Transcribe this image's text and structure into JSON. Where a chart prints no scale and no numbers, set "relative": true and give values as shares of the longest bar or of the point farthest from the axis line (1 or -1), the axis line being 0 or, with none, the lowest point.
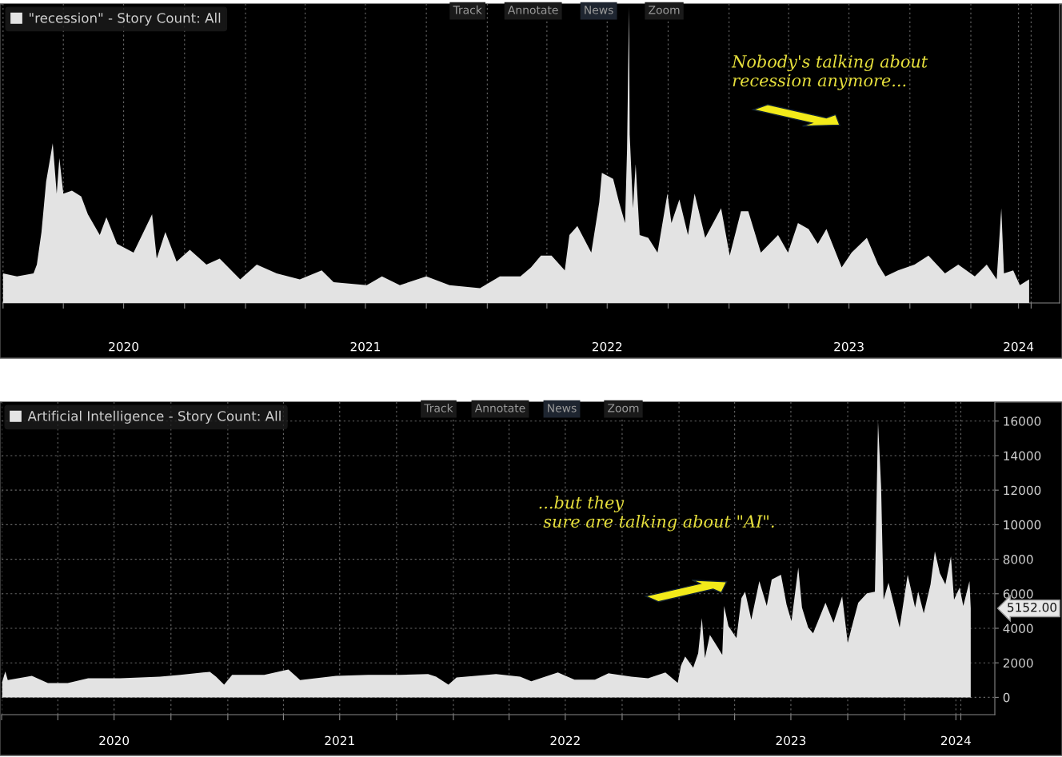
{
  "chart_data": [
    {
      "type": "area",
      "relative": true,
      "legend": "top left",
      "grid": "x",
      "tick_labels": "x",
      "annotations": [
        "Track",
        "Annotate",
        "News",
        "Zoom",
        "Nobody's talking about\nrecession anymore..."
      ],
      "xlim": [
        "2019-12-31",
        "2024-05-14"
      ],
      "xticks": [
        {
          "value": "2020-01-01",
          "label": null
        },
        {
          "value": "2020-04-01",
          "label": null
        },
        {
          "value": "2020-07-01",
          "label": "2020"
        },
        {
          "value": "2020-10-01",
          "label": null
        },
        {
          "value": "2021-01-01",
          "label": null
        },
        {
          "value": "2021-04-01",
          "label": null
        },
        {
          "value": "2021-07-01",
          "label": "2021"
        },
        {
          "value": "2021-10-01",
          "label": null
        },
        {
          "value": "2022-01-01",
          "label": null
        },
        {
          "value": "2022-04-01",
          "label": null
        },
        {
          "value": "2022-07-01",
          "label": "2022"
        },
        {
          "value": "2022-10-01",
          "label": null
        },
        {
          "value": "2023-01-01",
          "label": null
        },
        {
          "value": "2023-04-01",
          "label": null
        },
        {
          "value": "2023-07-01",
          "label": "2023"
        },
        {
          "value": "2023-10-01",
          "label": null
        },
        {
          "value": "2024-01-01",
          "label": null
        },
        {
          "value": "2024-03-13",
          "label": "2024"
        },
        {
          "value": "2024-04-01",
          "label": null
        }
      ],
      "series": [
        {
          "name": "\"recession\" - Story Count: All",
          "color": "#e3e3e3",
          "x": [
            "2020-01-01",
            "2020-01-22",
            "2020-02-16",
            "2020-02-21",
            "2020-02-28",
            "2020-03-06",
            "2020-03-16",
            "2020-03-22",
            "2020-03-26",
            "2020-04-01",
            "2020-04-14",
            "2020-04-28",
            "2020-05-08",
            "2020-05-26",
            "2020-06-05",
            "2020-06-21",
            "2020-07-16",
            "2020-08-13",
            "2020-08-20",
            "2020-09-02",
            "2020-09-19",
            "2020-10-09",
            "2020-11-03",
            "2020-11-23",
            "2020-12-24",
            "2021-01-18",
            "2021-02-17",
            "2021-03-24",
            "2021-04-26",
            "2021-05-14",
            "2021-07-03",
            "2021-07-26",
            "2021-08-22",
            "2021-10-01",
            "2021-11-05",
            "2021-12-21",
            "2022-01-20",
            "2022-02-20",
            "2022-03-08",
            "2022-03-23",
            "2022-04-08",
            "2022-04-28",
            "2022-05-05",
            "2022-05-17",
            "2022-06-07",
            "2022-06-19",
            "2022-06-23",
            "2022-07-10",
            "2022-07-19",
            "2022-07-28",
            "2022-07-31",
            "2022-08-03",
            "2022-08-04",
            "2022-08-09",
            "2022-08-13",
            "2022-08-19",
            "2022-09-01",
            "2022-09-15",
            "2022-09-30",
            "2022-10-06",
            "2022-10-18",
            "2022-10-31",
            "2022-11-10",
            "2022-11-26",
            "2022-12-20",
            "2023-01-02",
            "2023-01-19",
            "2023-01-30",
            "2023-02-18",
            "2023-03-16",
            "2023-03-31",
            "2023-04-15",
            "2023-05-01",
            "2023-05-15",
            "2023-05-28",
            "2023-06-20",
            "2023-07-05",
            "2023-07-28",
            "2023-08-14",
            "2023-08-25",
            "2023-09-13",
            "2023-10-08",
            "2023-10-29",
            "2023-11-23",
            "2023-12-13",
            "2024-01-07",
            "2024-01-25",
            "2024-02-09",
            "2024-02-16",
            "2024-02-20",
            "2024-03-05",
            "2024-03-15",
            "2024-03-29"
          ],
          "values": [
            0.1,
            0.09,
            0.1,
            0.13,
            0.24,
            0.41,
            0.54,
            0.37,
            0.49,
            0.37,
            0.38,
            0.36,
            0.3,
            0.23,
            0.29,
            0.2,
            0.17,
            0.3,
            0.15,
            0.24,
            0.14,
            0.18,
            0.13,
            0.15,
            0.08,
            0.13,
            0.1,
            0.08,
            0.11,
            0.07,
            0.06,
            0.09,
            0.06,
            0.09,
            0.06,
            0.05,
            0.09,
            0.09,
            0.12,
            0.16,
            0.16,
            0.11,
            0.23,
            0.26,
            0.17,
            0.34,
            0.44,
            0.42,
            0.34,
            0.27,
            0.52,
            1,
            0.57,
            0.32,
            0.47,
            0.23,
            0.22,
            0.17,
            0.37,
            0.27,
            0.35,
            0.23,
            0.37,
            0.22,
            0.32,
            0.16,
            0.31,
            0.31,
            0.17,
            0.23,
            0.17,
            0.27,
            0.25,
            0.2,
            0.25,
            0.12,
            0.17,
            0.22,
            0.13,
            0.09,
            0.11,
            0.13,
            0.16,
            0.1,
            0.13,
            0.09,
            0.13,
            0.08,
            0.32,
            0.1,
            0.11,
            0.06,
            0.08
          ]
        }
      ]
    },
    {
      "type": "area",
      "legend": "top left",
      "grid": true,
      "annotations": [
        "Track",
        "Annotate",
        "News",
        "Zoom",
        "...but they\n sure are talking about \"AI\".",
        "5152.00"
      ],
      "xlim": [
        "2020-01-01",
        "2024-05-26"
      ],
      "xticks": [
        {
          "value": "2020-01-01",
          "label": null
        },
        {
          "value": "2020-04-01",
          "label": null
        },
        {
          "value": "2020-07-01",
          "label": "2020"
        },
        {
          "value": "2020-10-01",
          "label": null
        },
        {
          "value": "2021-01-01",
          "label": null
        },
        {
          "value": "2021-04-01",
          "label": null
        },
        {
          "value": "2021-07-01",
          "label": "2021"
        },
        {
          "value": "2021-10-01",
          "label": null
        },
        {
          "value": "2022-01-01",
          "label": null
        },
        {
          "value": "2022-04-01",
          "label": null
        },
        {
          "value": "2022-07-01",
          "label": "2022"
        },
        {
          "value": "2022-10-01",
          "label": null
        },
        {
          "value": "2023-01-01",
          "label": null
        },
        {
          "value": "2023-04-01",
          "label": null
        },
        {
          "value": "2023-07-01",
          "label": "2023"
        },
        {
          "value": "2023-10-01",
          "label": null
        },
        {
          "value": "2024-01-01",
          "label": null
        },
        {
          "value": "2024-03-24",
          "label": "2024"
        },
        {
          "value": "2024-04-01",
          "label": null
        }
      ],
      "ylim": [
        -1000,
        17100
      ],
      "yticks": [
        0,
        2000,
        4000,
        6000,
        8000,
        10000,
        12000,
        14000,
        16000
      ],
      "series": [
        {
          "name": "Artificial Intelligence - Story Count: All",
          "color": "#e3e3e3",
          "x": [
            "2020-01-02",
            "2020-01-07",
            "2020-01-11",
            "2020-02-19",
            "2020-03-16",
            "2020-04-17",
            "2020-05-20",
            "2020-07-11",
            "2020-09-13",
            "2020-10-16",
            "2020-12-03",
            "2020-12-13",
            "2020-12-26",
            "2021-01-08",
            "2021-03-01",
            "2021-04-09",
            "2021-04-22",
            "2021-04-28",
            "2021-06-25",
            "2021-08-16",
            "2021-10-07",
            "2021-11-21",
            "2021-12-04",
            "2021-12-24",
            "2022-01-06",
            "2022-03-11",
            "2022-04-19",
            "2022-05-07",
            "2022-06-19",
            "2022-07-16",
            "2022-08-18",
            "2022-09-09",
            "2022-10-16",
            "2022-11-12",
            "2022-12-10",
            "2022-12-30",
            "2023-01-04",
            "2023-01-11",
            "2023-01-24",
            "2023-02-01",
            "2023-02-07",
            "2023-02-12",
            "2023-02-20",
            "2023-03-05",
            "2023-03-12",
            "2023-03-15",
            "2023-03-22",
            "2023-04-04",
            "2023-04-12",
            "2023-04-18",
            "2023-04-28",
            "2023-05-11",
            "2023-05-23",
            "2023-05-31",
            "2023-06-15",
            "2023-06-24",
            "2023-07-02",
            "2023-07-13",
            "2023-07-19",
            "2023-07-29",
            "2023-08-06",
            "2023-08-26",
            "2023-09-08",
            "2023-09-22",
            "2023-10-01",
            "2023-10-10",
            "2023-10-18",
            "2023-11-01",
            "2023-11-14",
            "2023-11-19",
            "2023-11-24",
            "2023-11-28",
            "2023-12-06",
            "2023-12-16",
            "2023-12-24",
            "2024-01-06",
            "2024-01-18",
            "2024-01-23",
            "2024-02-01",
            "2024-02-12",
            "2024-02-19",
            "2024-02-27",
            "2024-03-07",
            "2024-03-16",
            "2024-03-21",
            "2024-03-30",
            "2024-04-05",
            "2024-04-15",
            "2024-04-17"
          ],
          "values": [
            900,
            1500,
            1000,
            1250,
            830,
            830,
            1110,
            1110,
            1200,
            1300,
            1480,
            1200,
            740,
            1300,
            1300,
            1620,
            1200,
            1000,
            1250,
            1300,
            1300,
            1350,
            1200,
            740,
            1150,
            1350,
            1200,
            930,
            1440,
            1020,
            1020,
            1390,
            1200,
            1110,
            1440,
            840,
            1810,
            2370,
            1720,
            2550,
            4590,
            2270,
            3620,
            2880,
            2460,
            5290,
            4130,
            3430,
            5750,
            6120,
            4500,
            6730,
            5290,
            6820,
            7100,
            5380,
            4410,
            7520,
            5200,
            4040,
            3710,
            5480,
            4320,
            5850,
            3160,
            4410,
            5480,
            6030,
            6120,
            16000,
            12200,
            5660,
            6640,
            5200,
            4040,
            7100,
            5200,
            6120,
            4870,
            6540,
            8450,
            7190,
            6540,
            8170,
            5660,
            6360,
            5290,
            6730,
            5152
          ]
        }
      ]
    }
  ]
}
